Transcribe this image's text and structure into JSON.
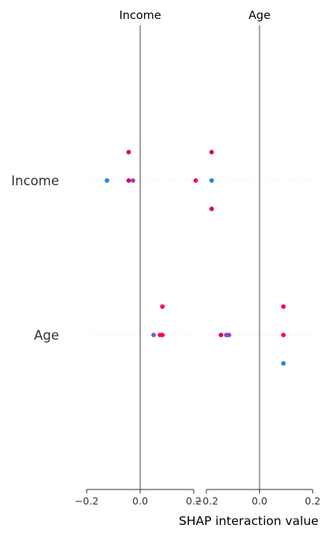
{
  "chart_data": {
    "type": "scatter",
    "kind": "shap-interaction-summary",
    "xlabel": "SHAP interaction value",
    "features": [
      "Income",
      "Age"
    ],
    "grid": false,
    "panels": [
      {
        "title": "Income",
        "xlim": [
          -0.2,
          0.2
        ],
        "xticks": [
          -0.2,
          0.0,
          0.2
        ],
        "tick_labels": [
          "−0.2",
          "0.0",
          "0.2"
        ],
        "rows": [
          {
            "feature": "Income",
            "points": [
              {
                "x": -0.043,
                "offset": -1,
                "color": "#d6006f"
              },
              {
                "x": -0.124,
                "offset": 0,
                "color": "#1e88e5"
              },
              {
                "x": -0.043,
                "offset": 0,
                "color": "#d6006f"
              },
              {
                "x": -0.027,
                "offset": 0,
                "color": "#a23cbf"
              }
            ]
          },
          {
            "feature": "Age",
            "points": [
              {
                "x": 0.083,
                "offset": -1,
                "color": "#ff0052"
              },
              {
                "x": 0.05,
                "offset": 0,
                "color": "#6a5fd6"
              },
              {
                "x": 0.074,
                "offset": 0,
                "color": "#ff0052"
              },
              {
                "x": 0.083,
                "offset": 0,
                "color": "#ff0052"
              }
            ]
          }
        ]
      },
      {
        "title": "Age",
        "xlim": [
          -0.2,
          0.2
        ],
        "xticks": [
          -0.2,
          0.0,
          0.2
        ],
        "tick_labels": [
          "−0.2",
          "0.0",
          "0.2"
        ],
        "rows": [
          {
            "feature": "Income",
            "points": [
              {
                "x": -0.18,
                "offset": -1,
                "color": "#d6006f"
              },
              {
                "x": -0.18,
                "offset": 0,
                "color": "#1e88e5"
              },
              {
                "x": -0.18,
                "offset": 1,
                "color": "#d6006f"
              },
              {
                "x": -0.24,
                "offset": 0,
                "color": "#ff0052"
              }
            ]
          },
          {
            "feature": "Age",
            "points": [
              {
                "x": 0.09,
                "offset": -1,
                "color": "#ff0052"
              },
              {
                "x": 0.09,
                "offset": 0,
                "color": "#ff0052"
              },
              {
                "x": 0.09,
                "offset": 1,
                "color": "#1e88e5"
              },
              {
                "x": -0.145,
                "offset": 0,
                "color": "#d6006f"
              },
              {
                "x": -0.125,
                "offset": 0,
                "color": "#a23cbf"
              },
              {
                "x": -0.115,
                "offset": 0,
                "color": "#8a45c8"
              }
            ]
          }
        ]
      }
    ]
  },
  "colors": {
    "axis": "#333333",
    "zero_line": "#999999",
    "row_guide": "#cccccc"
  }
}
